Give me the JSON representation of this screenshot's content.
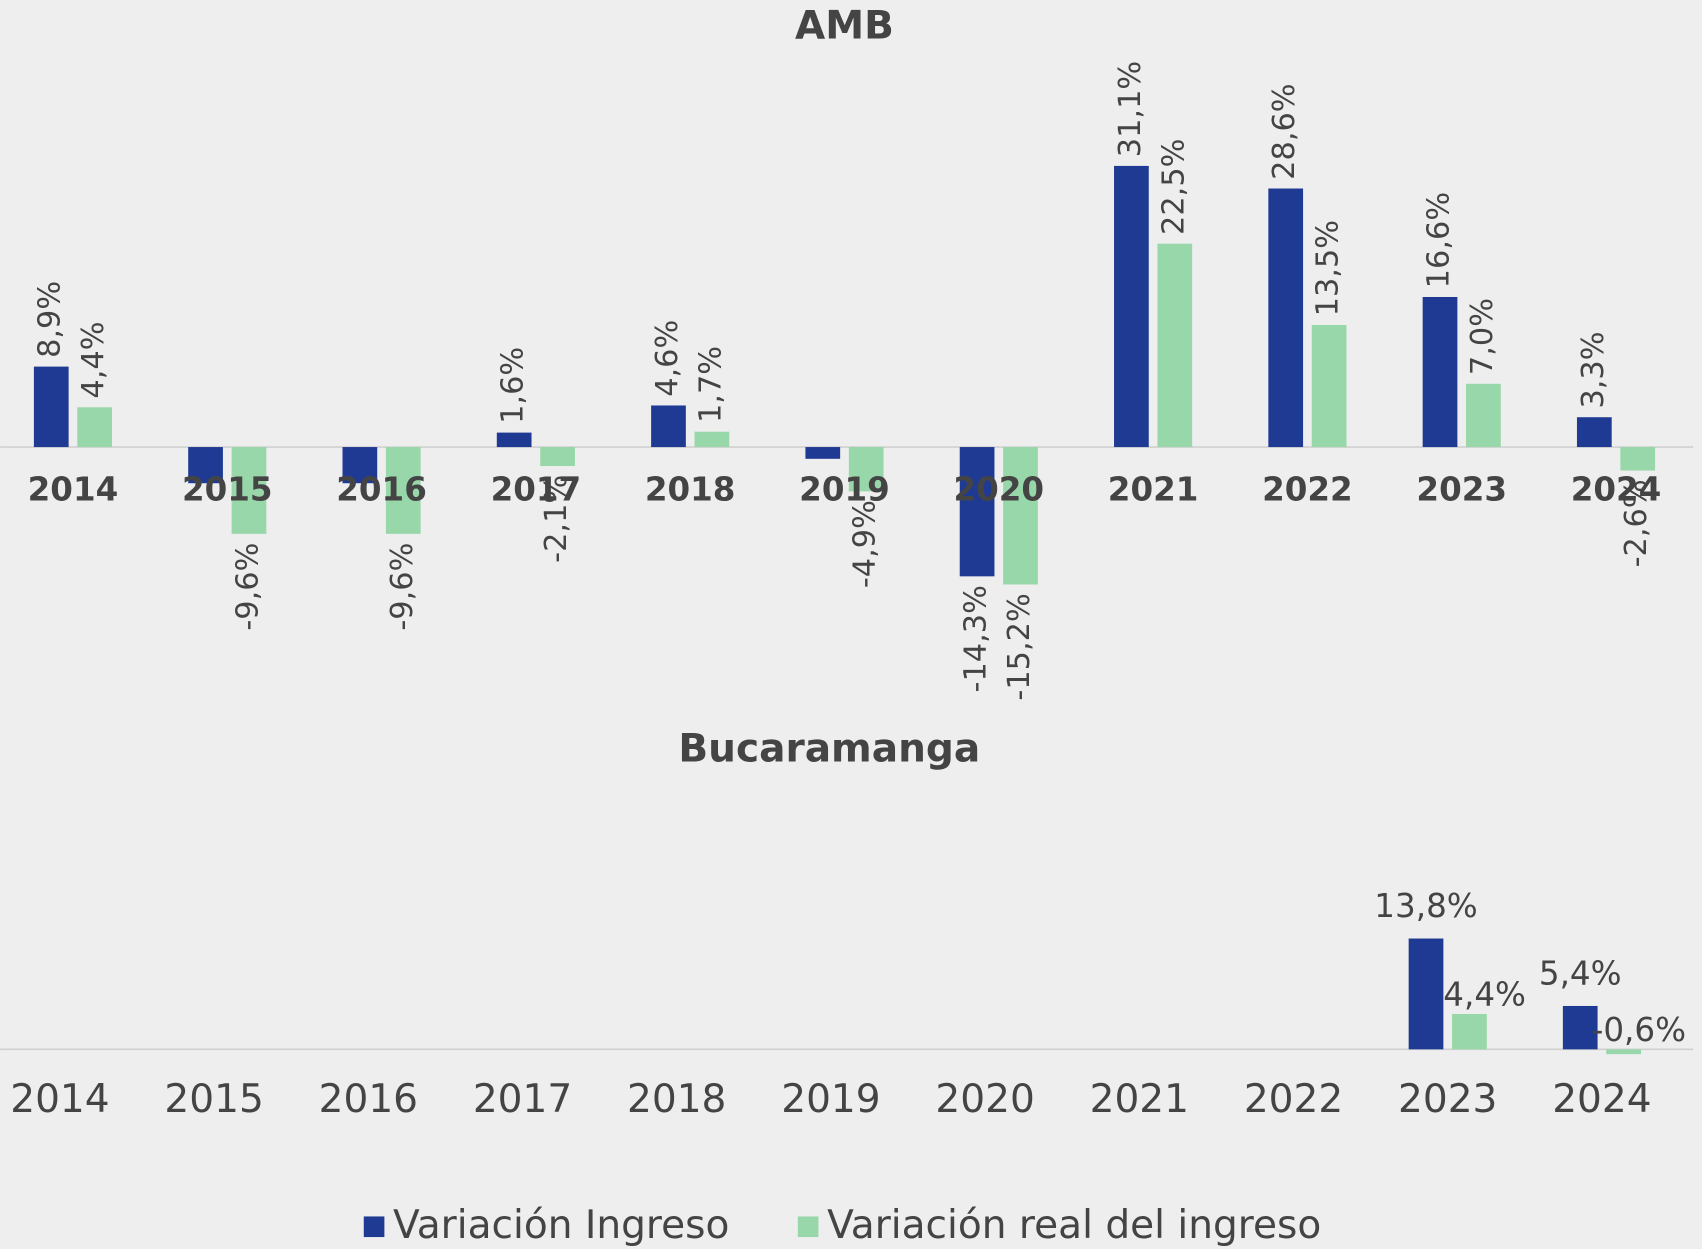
{
  "chart_data": [
    {
      "type": "bar",
      "title": "AMB",
      "categories": [
        "2014",
        "2015",
        "2016",
        "2017",
        "2018",
        "2019",
        "2020",
        "2021",
        "2022",
        "2023",
        "2024"
      ],
      "series": [
        {
          "name": "Variación Ingreso",
          "color": "#1f3a93",
          "values": [
            8.9,
            -4.0,
            -4.0,
            1.6,
            4.6,
            -1.3,
            -14.3,
            31.1,
            28.6,
            16.6,
            3.3
          ],
          "value_labels": [
            "8,9%",
            null,
            null,
            "1,6%",
            "4,6%",
            null,
            "-14,3%",
            "31,1%",
            "28,6%",
            "16,6%",
            "3,3%"
          ]
        },
        {
          "name": "Variación real del ingreso",
          "color": "#98d7a9",
          "values": [
            4.4,
            -9.6,
            -9.6,
            -2.1,
            1.7,
            -4.9,
            -15.2,
            22.5,
            13.5,
            7.0,
            -2.6
          ],
          "value_labels": [
            "4,4%",
            "-9,6%",
            "-9,6%",
            "-2,1%",
            "1,7%",
            "-4,9%",
            "-15,2%",
            "22,5%",
            "13,5%",
            "7,0%",
            "-2,6%"
          ]
        }
      ],
      "ylim": [
        -20,
        35
      ]
    },
    {
      "type": "bar",
      "title": "Bucaramanga",
      "categories": [
        "2014",
        "2015",
        "2016",
        "2017",
        "2018",
        "2019",
        "2020",
        "2021",
        "2022",
        "2023",
        "2024"
      ],
      "series": [
        {
          "color": "#1f3a93",
          "values": [
            null,
            null,
            null,
            null,
            null,
            null,
            null,
            null,
            null,
            13.8,
            5.4
          ],
          "value_labels": [
            null,
            null,
            null,
            null,
            null,
            null,
            null,
            null,
            null,
            "13,8%",
            "5,4%"
          ]
        },
        {
          "color": "#98d7a9",
          "values": [
            null,
            null,
            null,
            null,
            null,
            null,
            null,
            null,
            null,
            4.4,
            -0.6
          ],
          "value_labels": [
            null,
            null,
            null,
            null,
            null,
            null,
            null,
            null,
            null,
            "4,4%",
            "-0,6%"
          ]
        }
      ],
      "ylim": [
        -5,
        20
      ]
    }
  ]
}
